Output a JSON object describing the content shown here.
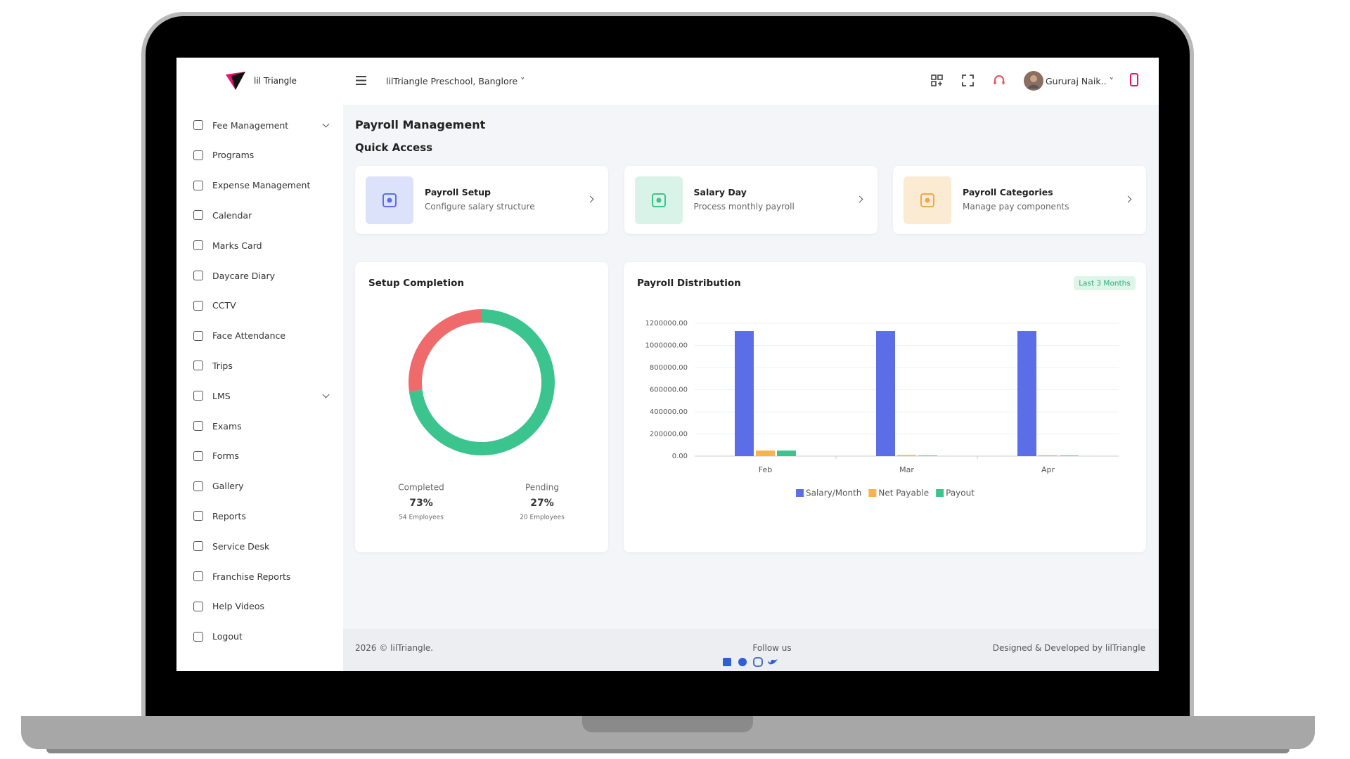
{
  "header": {
    "brand": "lil Triangle",
    "school": "lilTriangle Preschool, Banglore",
    "user": "Gururaj Naik.."
  },
  "sidebar": [
    {
      "label": "Fee Management",
      "expandable": true
    },
    {
      "label": "Programs"
    },
    {
      "label": "Expense Management"
    },
    {
      "label": "Calendar"
    },
    {
      "label": "Marks Card"
    },
    {
      "label": "Daycare Diary"
    },
    {
      "label": "CCTV"
    },
    {
      "label": "Face Attendance"
    },
    {
      "label": "Trips"
    },
    {
      "label": "LMS",
      "expandable": true
    },
    {
      "label": "Exams"
    },
    {
      "label": "Forms"
    },
    {
      "label": "Gallery"
    },
    {
      "label": "Reports"
    },
    {
      "label": "Service Desk"
    },
    {
      "label": "Franchise Reports"
    },
    {
      "label": "Help Videos"
    },
    {
      "label": "Logout"
    }
  ],
  "page": {
    "title": "Payroll Management",
    "section": "Quick Access"
  },
  "cards": [
    {
      "title": "Payroll Setup",
      "subtitle": "Configure salary structure",
      "color": "#5b6ee8",
      "bg": "#dde2fb"
    },
    {
      "title": "Salary Day",
      "subtitle": "Process monthly payroll",
      "color": "#3cc48f",
      "bg": "#d9f3e8"
    },
    {
      "title": "Payroll Categories",
      "subtitle": "Manage pay components",
      "color": "#f0a945",
      "bg": "#fcebd3"
    }
  ],
  "chart_data": [
    {
      "type": "pie",
      "title": "Setup Completion",
      "categories": [
        "Completed",
        "Pending"
      ],
      "values": [
        73,
        27
      ],
      "value_labels": [
        "73%",
        "27%"
      ],
      "employees": [
        "54 Employees",
        "20 Employees"
      ],
      "colors": [
        "#3cc48f",
        "#ef6b6b"
      ]
    },
    {
      "type": "bar",
      "title": "Payroll Distribution",
      "badge": "Last 3 Months",
      "categories": [
        "Feb",
        "Mar",
        "Apr"
      ],
      "series": [
        {
          "name": "Salary/Month",
          "color": "#5b6ee8",
          "values": [
            1130000,
            1130000,
            1130000
          ]
        },
        {
          "name": "Net Payable",
          "color": "#f5b44d",
          "values": [
            50000,
            10000,
            8000
          ]
        },
        {
          "name": "Payout",
          "color": "#3cc48f",
          "values": [
            50000,
            5000,
            5000
          ]
        }
      ],
      "ylim": [
        0,
        1200000
      ],
      "yticks": [
        {
          "value": 0,
          "label": "0.00"
        },
        {
          "value": 200000,
          "label": "200000.00"
        },
        {
          "value": 400000,
          "label": "400000.00"
        },
        {
          "value": 600000,
          "label": "600000.00"
        },
        {
          "value": 800000,
          "label": "800000.00"
        },
        {
          "value": 1000000,
          "label": "1000000.00"
        },
        {
          "value": 1200000,
          "label": "1200000.00"
        }
      ],
      "grid": true
    }
  ],
  "footer": {
    "copyright": "2026 © lilTriangle.",
    "follow": "Follow us",
    "credit": "Designed & Developed by lilTriangle"
  }
}
